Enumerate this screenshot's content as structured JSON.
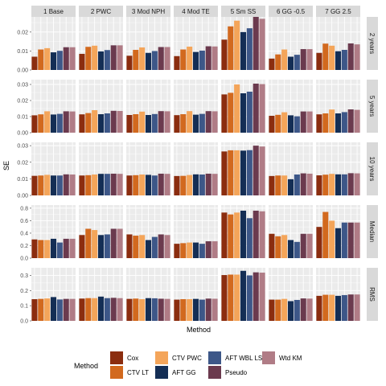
{
  "chart_data": {
    "type": "bar",
    "xlabel": "Method",
    "ylabel": "SE",
    "columns": [
      "1 Base",
      "2 PWC",
      "3 Mod NPH",
      "4 Mod TE",
      "5 Sm SS",
      "6 GG -0.5",
      "7 GG 2.5"
    ],
    "methods": [
      {
        "name": "Cox",
        "color": "#8b2d0f"
      },
      {
        "name": "CTV LT",
        "color": "#d2691e"
      },
      {
        "name": "CTV PWC",
        "color": "#f4a55a"
      },
      {
        "name": "AFT GG",
        "color": "#142e55"
      },
      {
        "name": "AFT WBL LS",
        "color": "#3d5788"
      },
      {
        "name": "Pseudo",
        "color": "#6b3a4e"
      },
      {
        "name": "Wtd KM",
        "color": "#b07c86"
      }
    ],
    "legend_title": "Method",
    "legend_position": "bottom",
    "grid": true,
    "rows": [
      {
        "label": "2 years",
        "ylim": [
          0,
          0.028
        ],
        "ticks": [
          0.0,
          0.01,
          0.02
        ],
        "tick_labels": [
          "0.00",
          "0.01",
          "0.02"
        ],
        "values": [
          [
            0.007,
            0.0108,
            0.0115,
            0.0093,
            0.0101,
            0.012,
            0.012
          ],
          [
            0.0085,
            0.0122,
            0.0128,
            0.0098,
            0.0105,
            0.013,
            0.013
          ],
          [
            0.0075,
            0.0106,
            0.0119,
            0.009,
            0.01,
            0.0121,
            0.0121
          ],
          [
            0.0073,
            0.0108,
            0.0123,
            0.0095,
            0.0102,
            0.0125,
            0.0124
          ],
          [
            0.016,
            0.023,
            0.026,
            0.02,
            0.022,
            0.028,
            0.027
          ],
          [
            0.006,
            0.0082,
            0.0108,
            0.007,
            0.008,
            0.011,
            0.011
          ],
          [
            0.009,
            0.0139,
            0.0128,
            0.0099,
            0.0106,
            0.014,
            0.0135
          ]
        ]
      },
      {
        "label": "5 years",
        "ylim": [
          0,
          0.033
        ],
        "ticks": [
          0.0,
          0.01,
          0.02,
          0.03
        ],
        "tick_labels": [
          "0.00",
          "0.01",
          "0.02",
          "0.03"
        ],
        "values": [
          [
            0.0108,
            0.0114,
            0.0133,
            0.0113,
            0.0117,
            0.0133,
            0.0132
          ],
          [
            0.0114,
            0.0122,
            0.014,
            0.0115,
            0.012,
            0.0136,
            0.0135
          ],
          [
            0.011,
            0.0115,
            0.0131,
            0.011,
            0.0116,
            0.0134,
            0.0133
          ],
          [
            0.0109,
            0.0115,
            0.0134,
            0.0112,
            0.0117,
            0.0134,
            0.0133
          ],
          [
            0.0238,
            0.0248,
            0.03,
            0.0245,
            0.0255,
            0.0305,
            0.0302
          ],
          [
            0.0105,
            0.0111,
            0.0127,
            0.0108,
            0.0102,
            0.0132,
            0.0132
          ],
          [
            0.0114,
            0.012,
            0.0144,
            0.012,
            0.0128,
            0.0145,
            0.0142
          ]
        ]
      },
      {
        "label": "10 years",
        "ylim": [
          0,
          0.032
        ],
        "ticks": [
          0.0,
          0.01,
          0.02,
          0.03
        ],
        "tick_labels": [
          "0.00",
          "0.01",
          "0.02",
          "0.03"
        ],
        "values": [
          [
            0.0118,
            0.012,
            0.0124,
            0.012,
            0.012,
            0.0127,
            0.0126
          ],
          [
            0.012,
            0.0122,
            0.0126,
            0.013,
            0.013,
            0.0131,
            0.013
          ],
          [
            0.012,
            0.0122,
            0.0126,
            0.0124,
            0.012,
            0.0131,
            0.013
          ],
          [
            0.0117,
            0.0118,
            0.0123,
            0.0127,
            0.0126,
            0.0131,
            0.013
          ],
          [
            0.0265,
            0.0272,
            0.0272,
            0.027,
            0.0273,
            0.03,
            0.0295
          ],
          [
            0.0117,
            0.012,
            0.012,
            0.0098,
            0.0126,
            0.0133,
            0.0131
          ],
          [
            0.0121,
            0.0125,
            0.013,
            0.0127,
            0.0127,
            0.0134,
            0.0133
          ]
        ]
      },
      {
        "label": "Median",
        "ylim": [
          0,
          0.85
        ],
        "ticks": [
          0.0,
          0.2,
          0.4,
          0.6,
          0.8
        ],
        "tick_labels": [
          "0.0",
          "0.2",
          "0.4",
          "0.6",
          "0.8"
        ],
        "values": [
          [
            0.3,
            0.29,
            0.29,
            0.31,
            0.25,
            0.31,
            0.31
          ],
          [
            0.37,
            0.47,
            0.45,
            0.37,
            0.38,
            0.47,
            0.47
          ],
          [
            0.38,
            0.36,
            0.37,
            0.29,
            0.34,
            0.38,
            0.37
          ],
          [
            0.23,
            0.24,
            0.25,
            0.25,
            0.23,
            0.27,
            0.27
          ],
          [
            0.73,
            0.7,
            0.73,
            0.76,
            0.64,
            0.76,
            0.75
          ],
          [
            0.39,
            0.35,
            0.37,
            0.29,
            0.26,
            0.39,
            0.39
          ],
          [
            0.5,
            0.74,
            0.6,
            0.48,
            0.57,
            0.57,
            0.57
          ]
        ]
      },
      {
        "label": "RMS",
        "ylim": [
          0,
          0.35
        ],
        "ticks": [
          0.0,
          0.1,
          0.2,
          0.3
        ],
        "tick_labels": [
          "0.0",
          "0.1",
          "0.2",
          "0.3"
        ],
        "values": [
          [
            0.143,
            0.145,
            0.148,
            0.157,
            0.141,
            0.145,
            0.145
          ],
          [
            0.147,
            0.15,
            0.15,
            0.16,
            0.15,
            0.152,
            0.15
          ],
          [
            0.145,
            0.147,
            0.143,
            0.15,
            0.149,
            0.146,
            0.145
          ],
          [
            0.14,
            0.143,
            0.143,
            0.145,
            0.14,
            0.147,
            0.146
          ],
          [
            0.302,
            0.305,
            0.305,
            0.33,
            0.3,
            0.32,
            0.318
          ],
          [
            0.14,
            0.14,
            0.145,
            0.13,
            0.138,
            0.148,
            0.147
          ],
          [
            0.165,
            0.172,
            0.172,
            0.165,
            0.17,
            0.174,
            0.174
          ]
        ]
      }
    ]
  }
}
